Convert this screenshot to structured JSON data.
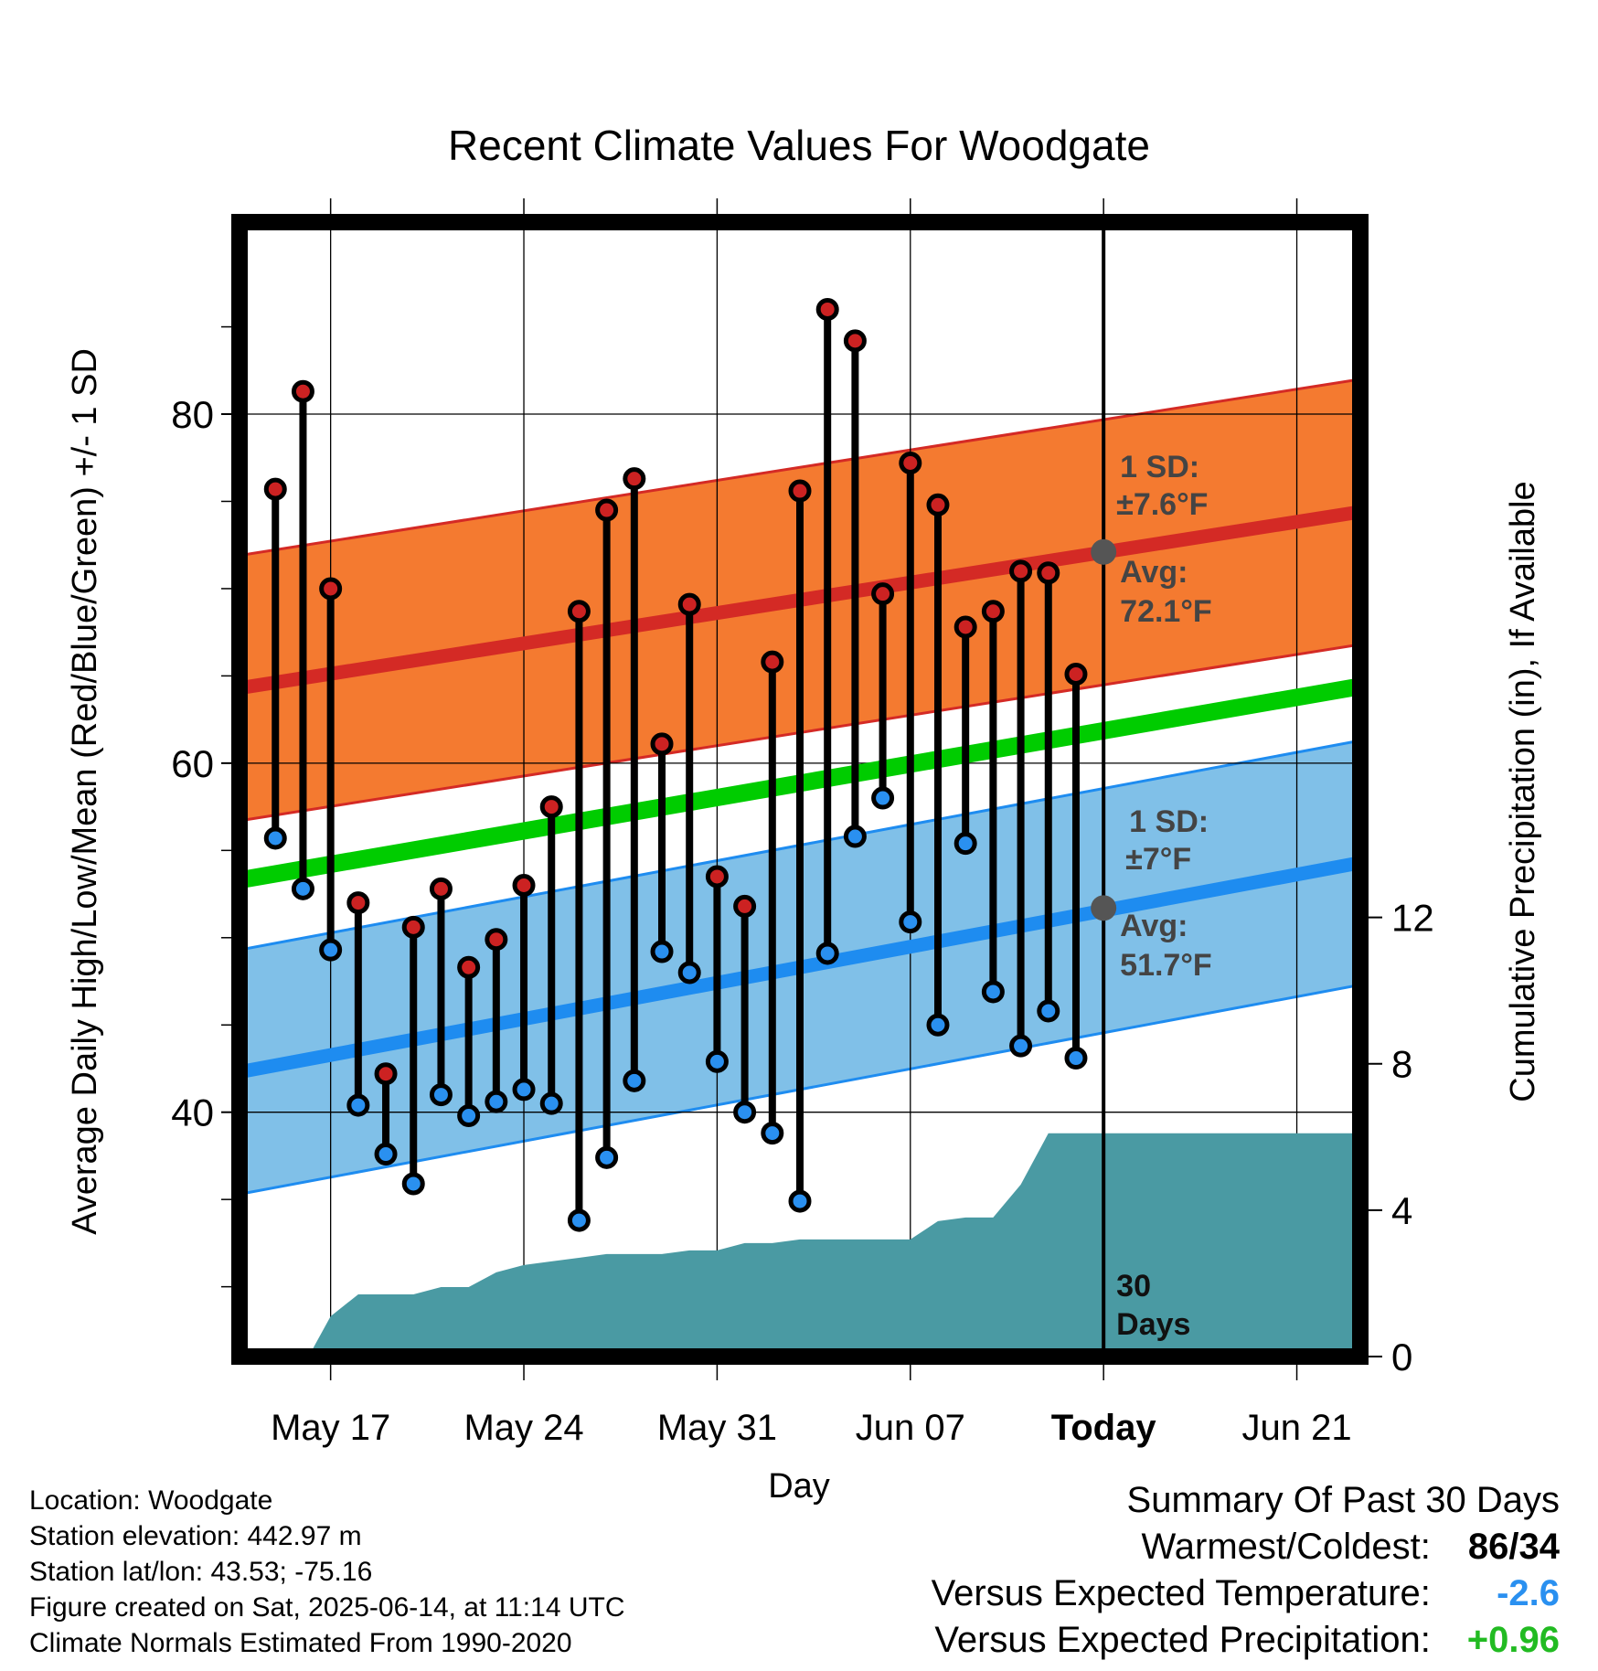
{
  "chart_data": {
    "type": "line",
    "title": "Recent Climate Values For Woodgate",
    "xlabel": "Day",
    "ylabel": "Average Daily High/Low/Mean (Red/Blue/Green) +/- 1 SD",
    "y2label": "Cumulative Precipitation (in), If Available",
    "ylim": [
      26,
      91
    ],
    "y2lim": [
      0,
      31
    ],
    "yticks": [
      80,
      60,
      40
    ],
    "y2ticks": [
      12,
      8,
      4,
      0
    ],
    "xlim": [
      -3.3,
      37.3
    ],
    "xticks": [
      {
        "day": 0,
        "label": "May 17"
      },
      {
        "day": 7,
        "label": "May 24"
      },
      {
        "day": 14,
        "label": "May 31"
      },
      {
        "day": 21,
        "label": "Jun 07"
      },
      {
        "day": 28,
        "label": "Today"
      },
      {
        "day": 35,
        "label": "Jun 21"
      }
    ],
    "grid": true,
    "daily_high": [
      75.7,
      81.3,
      70.0,
      52.0,
      42.2,
      50.6,
      52.8,
      48.3,
      49.9,
      53.0,
      57.5,
      68.7,
      74.5,
      76.3,
      61.1,
      69.1,
      53.5,
      51.8,
      65.8,
      75.6,
      86.0,
      84.2,
      69.7,
      77.2,
      74.8,
      67.8,
      68.7,
      71.0,
      70.9,
      65.1
    ],
    "daily_low": [
      55.7,
      52.8,
      49.3,
      40.4,
      37.6,
      35.9,
      41.0,
      39.8,
      40.6,
      41.3,
      40.5,
      33.8,
      37.4,
      41.8,
      49.2,
      48.0,
      42.9,
      40.0,
      38.8,
      34.9,
      49.1,
      55.8,
      58.0,
      50.9,
      45.0,
      55.4,
      46.9,
      43.8,
      45.8,
      43.1
    ],
    "series": [
      {
        "name": "Normal High",
        "start": 64.3,
        "end": 74.4,
        "color": "#d42a25"
      },
      {
        "name": "Normal Low",
        "start": 42.3,
        "end": 54.3,
        "color": "#1e8cf0"
      },
      {
        "name": "Normal Mean",
        "start": 53.3,
        "end": 64.4,
        "color": "#00cc00"
      }
    ],
    "high_sd": 7.6,
    "low_sd": 7.0,
    "precip_days": [
      -0.8,
      0,
      1,
      3,
      4,
      5,
      6,
      7,
      8,
      10,
      11,
      12,
      13,
      14,
      15,
      16,
      17,
      18,
      19,
      20,
      21,
      22,
      23,
      24,
      25,
      26,
      37.3
    ],
    "precip_values": [
      0.0,
      1.1,
      1.7,
      1.7,
      1.9,
      1.9,
      2.3,
      2.5,
      2.6,
      2.8,
      2.8,
      2.8,
      2.9,
      2.9,
      3.1,
      3.1,
      3.2,
      3.2,
      3.2,
      3.2,
      3.2,
      3.7,
      3.8,
      3.8,
      4.7,
      6.1,
      6.1
    ],
    "annotations": {
      "high_sd": [
        "1 SD:",
        "±7.6°F"
      ],
      "high_avg": [
        "Avg:",
        "72.1°F"
      ],
      "high_avg_value": 72.1,
      "low_sd": [
        "1 SD:",
        "±7°F"
      ],
      "low_avg": [
        "Avg:",
        "51.7°F"
      ],
      "low_avg_value": 51.7,
      "today_label": [
        "30",
        "Days"
      ]
    },
    "colors": {
      "high_band": "#f47a30",
      "low_band": "#80c0e8",
      "high_dot": "#cc2222",
      "low_dot": "#2a90f0",
      "precip": "#4a9aa3",
      "annotation_text": "#444444"
    }
  },
  "footer": {
    "location": "Location: Woodgate",
    "elevation": "Station elevation: 442.97 m",
    "latlon": "Station lat/lon: 43.53; -75.16",
    "created": "Figure created on Sat, 2025-06-14, at 11:14 UTC",
    "normals": "Climate Normals Estimated From 1990-2020"
  },
  "summary": {
    "title": "Summary Of Past 30 Days",
    "warm_cold_label": "Warmest/Coldest:",
    "warm_cold_value": "86/34",
    "temp_label": "Versus Expected Temperature:",
    "temp_value": "-2.6",
    "temp_color": "#2a90f0",
    "precip_label": "Versus Expected Precipitation:",
    "precip_value": "+0.96",
    "precip_color": "#22bb22"
  }
}
